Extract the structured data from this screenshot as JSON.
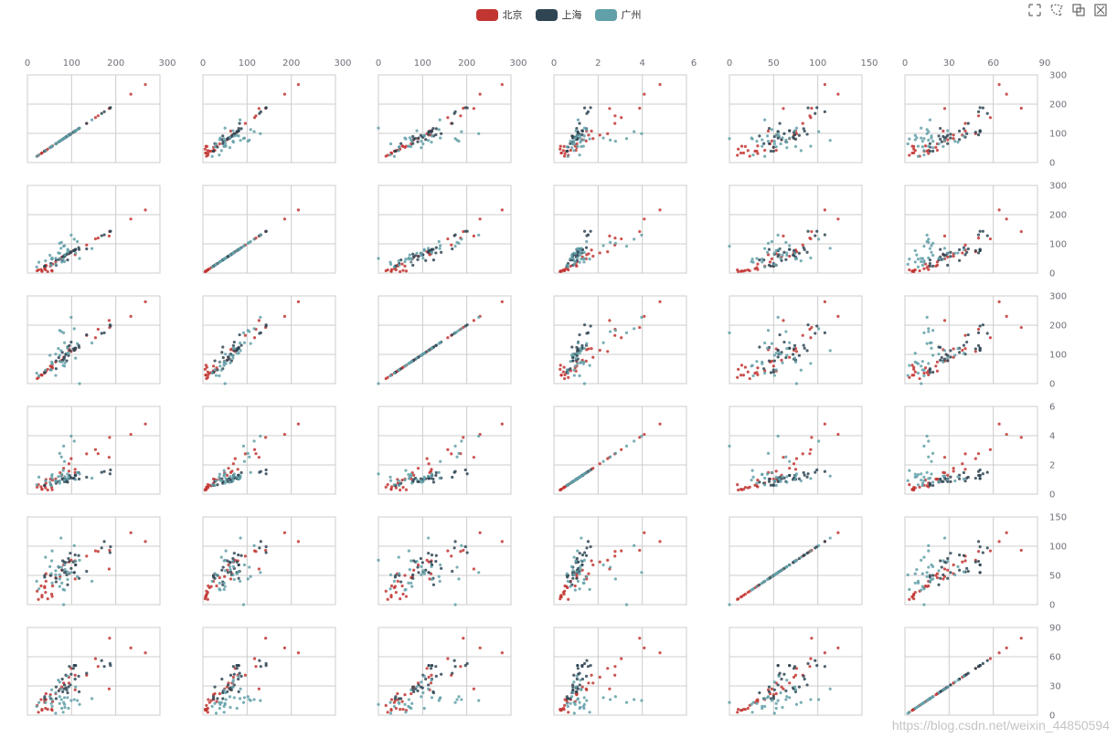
{
  "legend": [
    {
      "name": "北京",
      "color": "#c23531"
    },
    {
      "name": "上海",
      "color": "#2f4554"
    },
    {
      "name": "广州",
      "color": "#61a0a8"
    }
  ],
  "toolbox": [
    "brush-rect-icon",
    "brush-polygon-icon",
    "brush-keep-icon",
    "brush-clear-icon"
  ],
  "watermark": "https://blog.csdn.net/weixin_44850594",
  "chart_data": {
    "type": "scatter",
    "title": "",
    "grid": true,
    "legend_position": "top-center",
    "dimensions": [
      {
        "ticks": [
          "0",
          "100",
          "200",
          "300"
        ],
        "range": [
          0,
          300
        ]
      },
      {
        "ticks": [
          "0",
          "100",
          "200",
          "300"
        ],
        "range": [
          0,
          300
        ]
      },
      {
        "ticks": [
          "0",
          "100",
          "200",
          "300"
        ],
        "range": [
          0,
          300
        ]
      },
      {
        "ticks": [
          "0",
          "2",
          "4",
          "6"
        ],
        "range": [
          0,
          6
        ]
      },
      {
        "ticks": [
          "0",
          "50",
          "100",
          "150"
        ],
        "range": [
          0,
          150
        ]
      },
      {
        "ticks": [
          "0",
          "30",
          "60",
          "90"
        ],
        "range": [
          0,
          90
        ]
      }
    ],
    "series": [
      {
        "name": "北京",
        "color": "#c23531",
        "values": [
          [
            55,
            9,
            56,
            0.46,
            18,
            6
          ],
          [
            25,
            11,
            21,
            0.65,
            9,
            3
          ],
          [
            56,
            7,
            63,
            0.3,
            14,
            5
          ],
          [
            33,
            7,
            29,
            0.33,
            16,
            6
          ],
          [
            42,
            24,
            44,
            0.76,
            40,
            16
          ],
          [
            82,
            58,
            90,
            1.77,
            68,
            33
          ],
          [
            74,
            49,
            77,
            1.46,
            48,
            27
          ],
          [
            78,
            55,
            80,
            1.29,
            59,
            29
          ],
          [
            267,
            216,
            280,
            4.8,
            108,
            64
          ],
          [
            185,
            127,
            216,
            2.52,
            61,
            27
          ],
          [
            39,
            19,
            38,
            0.57,
            31,
            15
          ],
          [
            41,
            11,
            40,
            0.43,
            21,
            7
          ],
          [
            64,
            38,
            74,
            1.04,
            46,
            22
          ],
          [
            108,
            79,
            120,
            1.7,
            75,
            41
          ],
          [
            108,
            63,
            116,
            1.48,
            44,
            26
          ],
          [
            33,
            6,
            29,
            0.34,
            13,
            5
          ],
          [
            94,
            66,
            119,
            1.57,
            53,
            33
          ],
          [
            186,
            142,
            192,
            3.88,
            93,
            79
          ],
          [
            57,
            31,
            54,
            0.96,
            32,
            14
          ],
          [
            22,
            8,
            17,
            0.48,
            23,
            10
          ],
          [
            39,
            15,
            36,
            0.61,
            29,
            13
          ],
          [
            94,
            69,
            114,
            2.08,
            73,
            39
          ],
          [
            99,
            73,
            110,
            2.43,
            76,
            48
          ],
          [
            31,
            12,
            30,
            0.5,
            32,
            16
          ],
          [
            42,
            27,
            43,
            1.0,
            53,
            22
          ],
          [
            154,
            117,
            157,
            3.05,
            92,
            58
          ],
          [
            234,
            185,
            230,
            4.09,
            123,
            69
          ],
          [
            160,
            120,
            186,
            2.77,
            91,
            50
          ],
          [
            134,
            96,
            165,
            2.76,
            83,
            41
          ],
          [
            52,
            24,
            60,
            1.03,
            50,
            21
          ],
          [
            46,
            5,
            49,
            0.28,
            10,
            6
          ]
        ]
      },
      {
        "name": "上海",
        "color": "#2f4554",
        "values": [
          [
            91,
            45,
            125,
            0.82,
            34,
            23
          ],
          [
            65,
            27,
            78,
            0.86,
            45,
            29
          ],
          [
            83,
            60,
            84,
            1.09,
            73,
            27
          ],
          [
            109,
            81,
            121,
            1.28,
            68,
            51
          ],
          [
            106,
            77,
            114,
            1.07,
            55,
            51
          ],
          [
            109,
            81,
            121,
            1.28,
            68,
            51
          ],
          [
            106,
            77,
            114,
            1.07,
            55,
            51
          ],
          [
            89,
            65,
            78,
            0.86,
            51,
            26
          ],
          [
            53,
            33,
            47,
            0.64,
            50,
            17
          ],
          [
            80,
            55,
            80,
            1.01,
            75,
            24
          ],
          [
            117,
            81,
            124,
            1.03,
            45,
            24
          ],
          [
            99,
            71,
            142,
            1.1,
            62,
            42
          ],
          [
            95,
            69,
            130,
            1.28,
            74,
            50
          ],
          [
            116,
            87,
            131,
            1.47,
            84,
            40
          ],
          [
            108,
            80,
            121,
            1.3,
            85,
            37
          ],
          [
            134,
            83,
            167,
            1.16,
            57,
            43
          ],
          [
            79,
            43,
            107,
            1.05,
            59,
            37
          ],
          [
            71,
            46,
            89,
            0.86,
            64,
            25
          ],
          [
            97,
            71,
            113,
            1.17,
            88,
            31
          ],
          [
            84,
            57,
            91,
            0.85,
            55,
            31
          ],
          [
            87,
            63,
            101,
            0.9,
            56,
            41
          ],
          [
            104,
            77,
            119,
            1.09,
            73,
            48
          ],
          [
            87,
            62,
            100,
            1.0,
            72,
            28
          ],
          [
            168,
            128,
            172,
            1.49,
            97,
            56
          ],
          [
            65,
            45,
            51,
            0.74,
            39,
            17
          ],
          [
            39,
            24,
            38,
            0.61,
            47,
            17
          ],
          [
            39,
            24,
            39,
            0.59,
            50,
            19
          ],
          [
            93,
            68,
            96,
            1.05,
            79,
            29
          ],
          [
            188,
            143,
            197,
            1.66,
            99,
            51
          ],
          [
            174,
            131,
            174,
            1.55,
            108,
            50
          ],
          [
            187,
            143,
            201,
            1.39,
            89,
            53
          ]
        ]
      },
      {
        "name": "广州",
        "color": "#61a0a8",
        "values": [
          [
            26,
            37,
            27,
            1.163,
            27,
            13
          ],
          [
            85,
            62,
            71,
            1.195,
            60,
            8
          ],
          [
            78,
            38,
            74,
            1.363,
            37,
            7
          ],
          [
            21,
            21,
            36,
            0.634,
            40,
            9
          ],
          [
            41,
            42,
            46,
            0.915,
            81,
            13
          ],
          [
            56,
            52,
            69,
            1.067,
            92,
            16
          ],
          [
            64,
            30,
            28,
            0.924,
            51,
            2
          ],
          [
            55,
            48,
            74,
            1.236,
            75,
            26
          ],
          [
            76,
            85,
            113,
            1.237,
            114,
            27
          ],
          [
            91,
            81,
            104,
            1.041,
            56,
            40
          ],
          [
            84,
            39,
            60,
            0.964,
            25,
            11
          ],
          [
            64,
            51,
            101,
            0.862,
            58,
            23
          ],
          [
            70,
            69,
            120,
            1.198,
            65,
            36
          ],
          [
            77,
            105,
            178,
            2.549,
            64,
            16
          ],
          [
            109,
            68,
            87,
            0.996,
            74,
            29
          ],
          [
            73,
            68,
            97,
            0.905,
            51,
            34
          ],
          [
            54,
            27,
            47,
            0.592,
            53,
            12
          ],
          [
            51,
            61,
            97,
            0.811,
            65,
            19
          ],
          [
            91,
            71,
            121,
            1.374,
            43,
            18
          ],
          [
            73,
            102,
            182,
            2.787,
            44,
            19
          ],
          [
            73,
            50,
            76,
            0.747,
            31,
            12
          ],
          [
            84,
            94,
            140,
            2.238,
            68,
            18
          ],
          [
            93,
            77,
            104,
            1.165,
            53,
            7
          ],
          [
            99,
            130,
            227,
            3.97,
            55,
            15
          ],
          [
            146,
            84,
            139,
            1.094,
            40,
            17
          ],
          [
            113,
            108,
            137,
            1.481,
            48,
            15
          ],
          [
            81,
            48,
            62,
            1.619,
            26,
            3
          ],
          [
            56,
            48,
            68,
            1.336,
            37,
            9
          ],
          [
            82,
            92,
            174,
            3.29,
            0,
            13
          ],
          [
            106,
            116,
            188,
            3.628,
            101,
            16
          ],
          [
            118,
            50,
            0,
            1.383,
            76,
            11
          ]
        ]
      }
    ]
  }
}
